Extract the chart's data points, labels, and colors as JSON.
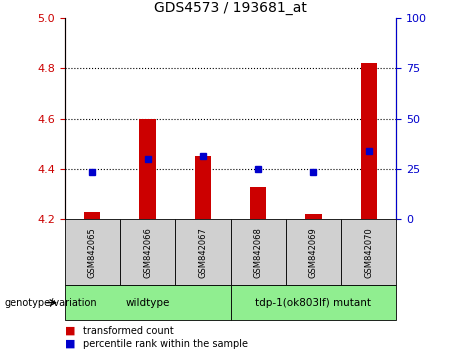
{
  "title": "GDS4573 / 193681_at",
  "samples": [
    "GSM842065",
    "GSM842066",
    "GSM842067",
    "GSM842068",
    "GSM842069",
    "GSM842070"
  ],
  "red_values": [
    4.23,
    4.6,
    4.45,
    4.33,
    4.22,
    4.82
  ],
  "blue_values": [
    4.39,
    4.44,
    4.45,
    4.4,
    4.39,
    4.47
  ],
  "baseline": 4.2,
  "ylim_left": [
    4.2,
    5.0
  ],
  "ylim_right": [
    0,
    100
  ],
  "left_ticks": [
    4.2,
    4.4,
    4.6,
    4.8,
    5.0
  ],
  "right_ticks": [
    0,
    25,
    50,
    75,
    100
  ],
  "dotted_lines": [
    4.4,
    4.6,
    4.8
  ],
  "left_color": "#cc0000",
  "right_color": "#0000cc",
  "bar_color": "#cc0000",
  "dot_color": "#0000cc",
  "sample_bg_color": "#d0d0d0",
  "genotype_bg_color": "#90ee90",
  "wildtype_label": "wildtype",
  "mutant_label": "tdp-1(ok803lf) mutant",
  "genotype_label": "genotype/variation",
  "legend_red": "transformed count",
  "legend_blue": "percentile rank within the sample",
  "bar_width": 0.3,
  "n_wildtype": 3,
  "n_mutant": 3
}
